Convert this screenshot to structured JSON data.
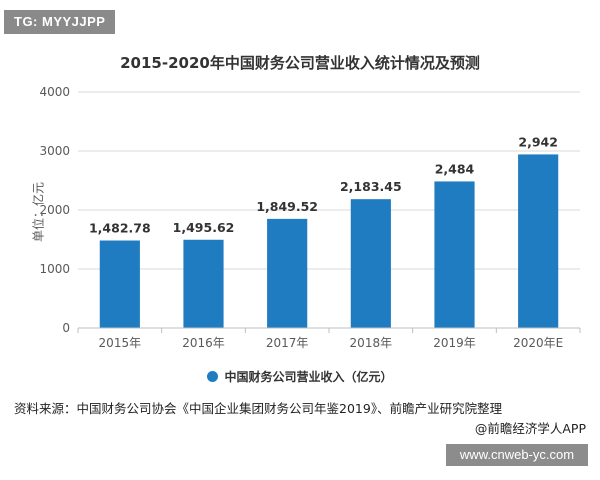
{
  "tag_label": "TG: MYYJJPP",
  "source_text": "资料来源：中国财务公司协会《中国企业集团财务公司年鉴2019》、前瞻产业研究院整理",
  "credit_text": "@前瞻经济学人APP",
  "website_text": "www.cnweb-yc.com",
  "colors": {
    "bar": "#1f7cc1",
    "axis": "#bfbfbf",
    "grid": "#d9d9d9"
  },
  "chart_data": {
    "type": "bar",
    "title": "2015-2020年中国财务公司营业收入统计情况及预测",
    "ylabel": "单位：亿元",
    "xlabel": "",
    "categories": [
      "2015年",
      "2016年",
      "2017年",
      "2018年",
      "2019年",
      "2020年E"
    ],
    "series": [
      {
        "name": "中国财务公司营业收入（亿元）",
        "values": [
          1482.78,
          1495.62,
          1849.52,
          2183.45,
          2484,
          2942
        ],
        "labels": [
          "1,482.78",
          "1,495.62",
          "1,849.52",
          "2,183.45",
          "2,484",
          "2,942"
        ]
      }
    ],
    "ylim": [
      0,
      4000
    ],
    "yticks": [
      0,
      1000,
      2000,
      3000,
      4000
    ],
    "grid": true,
    "legend": "bottom"
  }
}
